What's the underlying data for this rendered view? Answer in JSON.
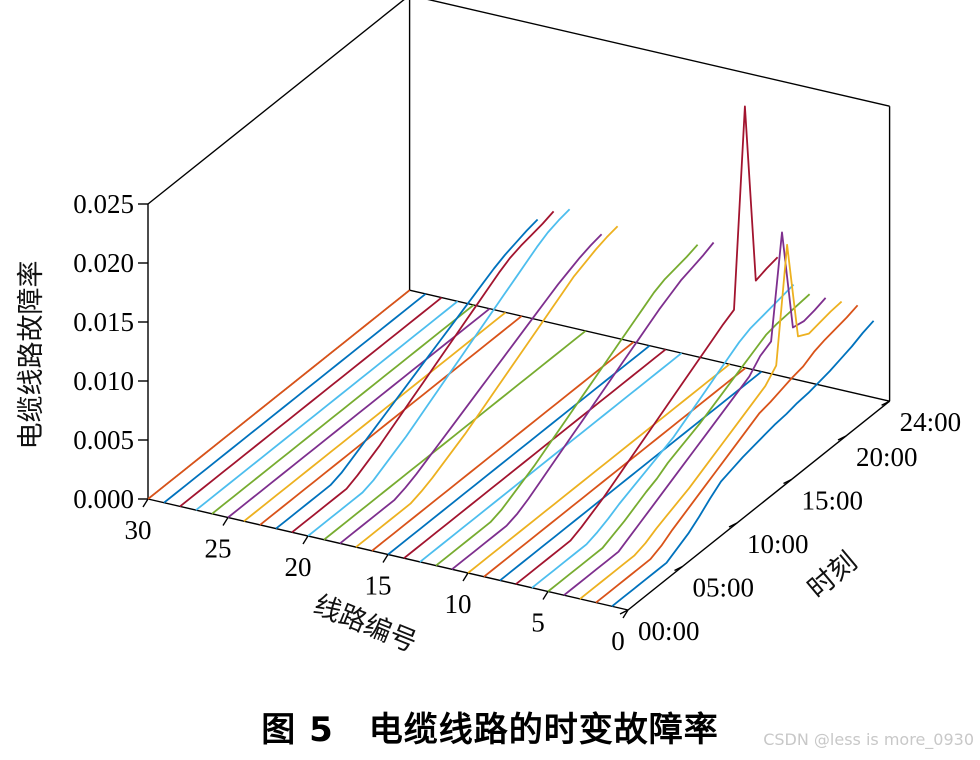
{
  "chart_data": {
    "type": "line",
    "title": "",
    "caption": "图 5　电缆线路的时变故障率",
    "xlabel": "线路编号",
    "ylabel": "时刻",
    "zlabel": "电缆线路故障率",
    "x_ticks": [
      "0",
      "5",
      "10",
      "15",
      "20",
      "25",
      "30"
    ],
    "x_range": [
      0,
      30
    ],
    "y_ticks": [
      "00:00",
      "05:00",
      "10:00",
      "15:00",
      "20:00",
      "24:00"
    ],
    "y_range_hours": [
      0,
      24
    ],
    "z_ticks": [
      "0.000",
      "0.005",
      "0.010",
      "0.015",
      "0.020",
      "0.025"
    ],
    "z_range": [
      0,
      0.025
    ],
    "grid": false,
    "legend": "none",
    "palette": [
      "#0072BD",
      "#D95319",
      "#EDB120",
      "#7E2F8E",
      "#77AC30",
      "#4DBEEE",
      "#A2142F"
    ],
    "time_hours": [
      0,
      1,
      2,
      3,
      4,
      5,
      6,
      7,
      8,
      9,
      10,
      11,
      12,
      13,
      14,
      15,
      16,
      17,
      18,
      19,
      20,
      21,
      22,
      23,
      24
    ],
    "series": [
      {
        "line": 1,
        "values": [
          0,
          0,
          0,
          0,
          0,
          0,
          0.0005,
          0.001,
          0.0017,
          0.0025,
          0.0032,
          0.0035,
          0.0038,
          0.004,
          0.0042,
          0.0044,
          0.0045,
          0.0047,
          0.0048,
          0.005,
          0.0052,
          0.0055,
          0.0058,
          0.0062,
          0.0065
        ]
      },
      {
        "line": 2,
        "values": [
          0,
          0,
          0,
          0,
          0,
          0,
          0.0004,
          0.001,
          0.0015,
          0.002,
          0.0025,
          0.003,
          0.0035,
          0.004,
          0.0045,
          0.005,
          0.0052,
          0.0055,
          0.0058,
          0.006,
          0.0065,
          0.0068,
          0.007,
          0.0072,
          0.0075
        ]
      },
      {
        "line": 3,
        "values": [
          0,
          0,
          0,
          0,
          0,
          0,
          0.0003,
          0.0008,
          0.0012,
          0.0016,
          0.002,
          0.0025,
          0.003,
          0.0035,
          0.004,
          0.0045,
          0.005,
          0.0055,
          0.0065,
          0.016,
          0.0075,
          0.007,
          0.0072,
          0.0074,
          0.0075
        ]
      },
      {
        "line": 4,
        "values": [
          0,
          0,
          0,
          0,
          0,
          0,
          0.0005,
          0.001,
          0.0015,
          0.002,
          0.0025,
          0.003,
          0.0035,
          0.004,
          0.0045,
          0.005,
          0.0055,
          0.006,
          0.007,
          0.0075,
          0.016,
          0.0072,
          0.007,
          0.0072,
          0.0075
        ]
      },
      {
        "line": 5,
        "values": [
          0,
          0,
          0,
          0,
          0,
          0,
          0.0004,
          0.0008,
          0.0013,
          0.0018,
          0.0022,
          0.0028,
          0.0032,
          0.0036,
          0.004,
          0.0045,
          0.005,
          0.0055,
          0.006,
          0.0065,
          0.007,
          0.0072,
          0.0073,
          0.0074,
          0.0075
        ]
      },
      {
        "line": 6,
        "values": [
          0,
          0,
          0,
          0,
          0,
          0,
          0.0003,
          0.0007,
          0.0012,
          0.0016,
          0.002,
          0.0024,
          0.0028,
          0.0032,
          0.0038,
          0.0044,
          0.005,
          0.0056,
          0.0062,
          0.0068,
          0.0072,
          0.0074,
          0.0076,
          0.0078,
          0.008
        ]
      },
      {
        "line": 7,
        "values": [
          0,
          0,
          0,
          0,
          0,
          0,
          0.0004,
          0.0009,
          0.0014,
          0.002,
          0.0026,
          0.0032,
          0.0038,
          0.0044,
          0.005,
          0.0056,
          0.0062,
          0.0068,
          0.0074,
          0.008,
          0.0085,
          0.025,
          0.0095,
          0.0098,
          0.01
        ]
      },
      {
        "line": 8,
        "values": [
          0,
          0,
          0,
          0,
          0,
          0,
          0,
          0,
          0,
          0,
          0,
          0,
          0,
          0,
          0,
          0,
          0,
          0,
          0,
          0,
          0,
          0,
          0,
          0,
          0
        ]
      },
      {
        "line": 9,
        "values": [
          0,
          0,
          0,
          0,
          0,
          0,
          0,
          0,
          0,
          0,
          0,
          0,
          0,
          0,
          0,
          0,
          0,
          0,
          0,
          0,
          0,
          0,
          0,
          0,
          0
        ]
      },
      {
        "line": 10,
        "values": [
          0,
          0,
          0,
          0,
          0,
          0,
          0,
          0,
          0,
          0,
          0,
          0,
          0,
          0,
          0,
          0,
          0,
          0,
          0,
          0,
          0,
          0,
          0,
          0,
          0
        ]
      },
      {
        "line": 11,
        "values": [
          0,
          0,
          0,
          0,
          0,
          0,
          0.0003,
          0.0008,
          0.0014,
          0.002,
          0.0026,
          0.0032,
          0.0038,
          0.0044,
          0.005,
          0.0056,
          0.0062,
          0.0068,
          0.0074,
          0.008,
          0.0085,
          0.009,
          0.0093,
          0.0096,
          0.01
        ]
      },
      {
        "line": 12,
        "values": [
          0,
          0,
          0,
          0,
          0,
          0,
          0.0003,
          0.0008,
          0.0013,
          0.0018,
          0.0024,
          0.003,
          0.0036,
          0.0042,
          0.0048,
          0.0054,
          0.006,
          0.0066,
          0.0072,
          0.0078,
          0.0084,
          0.0088,
          0.009,
          0.0092,
          0.0095
        ]
      },
      {
        "line": 13,
        "values": [
          0,
          0,
          0,
          0,
          0,
          0,
          0,
          0,
          0,
          0,
          0,
          0,
          0,
          0,
          0,
          0,
          0,
          0,
          0,
          0,
          0,
          0,
          0,
          0,
          0
        ]
      },
      {
        "line": 14,
        "values": [
          0,
          0,
          0,
          0,
          0,
          0,
          0,
          0,
          0,
          0,
          0,
          0,
          0,
          0,
          0,
          0,
          0,
          0,
          0,
          0,
          0,
          0,
          0,
          0,
          0
        ]
      },
      {
        "line": 15,
        "values": [
          0,
          0,
          0,
          0,
          0,
          0,
          0,
          0,
          0,
          0,
          0,
          0,
          0,
          0,
          0,
          0,
          0,
          0,
          0,
          0,
          0,
          0,
          0,
          0,
          0
        ]
      },
      {
        "line": 16,
        "values": [
          0,
          0,
          0,
          0,
          0,
          0,
          0,
          0,
          0,
          0,
          0,
          0,
          0,
          0,
          0,
          0,
          0,
          0,
          0,
          0,
          0,
          0,
          0,
          0,
          0
        ]
      },
      {
        "line": 17,
        "values": [
          0,
          0,
          0,
          0,
          0,
          0,
          0.0003,
          0.0007,
          0.0012,
          0.0017,
          0.0022,
          0.0028,
          0.0034,
          0.004,
          0.0046,
          0.0052,
          0.0058,
          0.0064,
          0.007,
          0.0076,
          0.0082,
          0.0086,
          0.009,
          0.0093,
          0.0095
        ]
      },
      {
        "line": 18,
        "values": [
          0,
          0,
          0,
          0,
          0,
          0,
          0.0003,
          0.0007,
          0.0012,
          0.0017,
          0.0022,
          0.0027,
          0.0032,
          0.0037,
          0.0042,
          0.0047,
          0.0052,
          0.0057,
          0.0062,
          0.0067,
          0.0072,
          0.0076,
          0.008,
          0.0083,
          0.0085
        ]
      },
      {
        "line": 19,
        "values": [
          0,
          0,
          0,
          0,
          0,
          0,
          0,
          0,
          0,
          0,
          0,
          0,
          0,
          0,
          0,
          0,
          0,
          0,
          0,
          0,
          0,
          0,
          0,
          0,
          0
        ]
      },
      {
        "line": 20,
        "values": [
          0,
          0,
          0,
          0,
          0,
          0,
          0.0003,
          0.0008,
          0.0013,
          0.0018,
          0.0024,
          0.003,
          0.0036,
          0.0042,
          0.0048,
          0.0054,
          0.006,
          0.0066,
          0.0072,
          0.0078,
          0.0084,
          0.009,
          0.0095,
          0.0098,
          0.01
        ]
      },
      {
        "line": 21,
        "values": [
          0,
          0,
          0,
          0,
          0,
          0,
          0.0004,
          0.0009,
          0.0014,
          0.002,
          0.0026,
          0.0032,
          0.0038,
          0.0044,
          0.005,
          0.0056,
          0.0062,
          0.0068,
          0.0074,
          0.008,
          0.0085,
          0.0088,
          0.009,
          0.0092,
          0.0095
        ]
      },
      {
        "line": 22,
        "values": [
          0,
          0,
          0,
          0,
          0,
          0,
          0.0003,
          0.0008,
          0.0013,
          0.0018,
          0.0023,
          0.0028,
          0.0033,
          0.0038,
          0.0043,
          0.0048,
          0.0053,
          0.0058,
          0.0063,
          0.0068,
          0.0073,
          0.0077,
          0.008,
          0.0083,
          0.0085
        ]
      },
      {
        "line": 23,
        "values": [
          0,
          0,
          0,
          0,
          0,
          0,
          0,
          0,
          0,
          0,
          0,
          0,
          0,
          0,
          0,
          0,
          0,
          0,
          0,
          0,
          0,
          0,
          0,
          0,
          0
        ]
      },
      {
        "line": 24,
        "values": [
          0,
          0,
          0,
          0,
          0,
          0,
          0,
          0,
          0,
          0,
          0,
          0,
          0,
          0,
          0,
          0,
          0,
          0,
          0,
          0,
          0,
          0,
          0,
          0,
          0
        ]
      },
      {
        "line": 25,
        "values": [
          0,
          0,
          0,
          0,
          0,
          0,
          0,
          0,
          0,
          0,
          0,
          0,
          0,
          0,
          0,
          0,
          0,
          0,
          0,
          0,
          0,
          0,
          0,
          0,
          0
        ]
      },
      {
        "line": 26,
        "values": [
          0,
          0,
          0,
          0,
          0,
          0,
          0,
          0,
          0,
          0,
          0,
          0,
          0,
          0,
          0,
          0,
          0,
          0,
          0,
          0,
          0,
          0,
          0,
          0,
          0
        ]
      },
      {
        "line": 27,
        "values": [
          0,
          0,
          0,
          0,
          0,
          0,
          0,
          0,
          0,
          0,
          0,
          0,
          0,
          0,
          0,
          0,
          0,
          0,
          0,
          0,
          0,
          0,
          0,
          0,
          0
        ]
      },
      {
        "line": 28,
        "values": [
          0,
          0,
          0,
          0,
          0,
          0,
          0,
          0,
          0,
          0,
          0,
          0,
          0,
          0,
          0,
          0,
          0,
          0,
          0,
          0,
          0,
          0,
          0,
          0,
          0
        ]
      },
      {
        "line": 29,
        "values": [
          0,
          0,
          0,
          0,
          0,
          0,
          0,
          0,
          0,
          0,
          0,
          0,
          0,
          0,
          0,
          0,
          0,
          0,
          0,
          0,
          0,
          0,
          0,
          0,
          0
        ]
      },
      {
        "line": 30,
        "values": [
          0,
          0,
          0,
          0,
          0,
          0,
          0,
          0,
          0,
          0,
          0,
          0,
          0,
          0,
          0,
          0,
          0,
          0,
          0,
          0,
          0,
          0,
          0,
          0,
          0
        ]
      }
    ]
  },
  "watermark": "CSDN @less is more_0930"
}
